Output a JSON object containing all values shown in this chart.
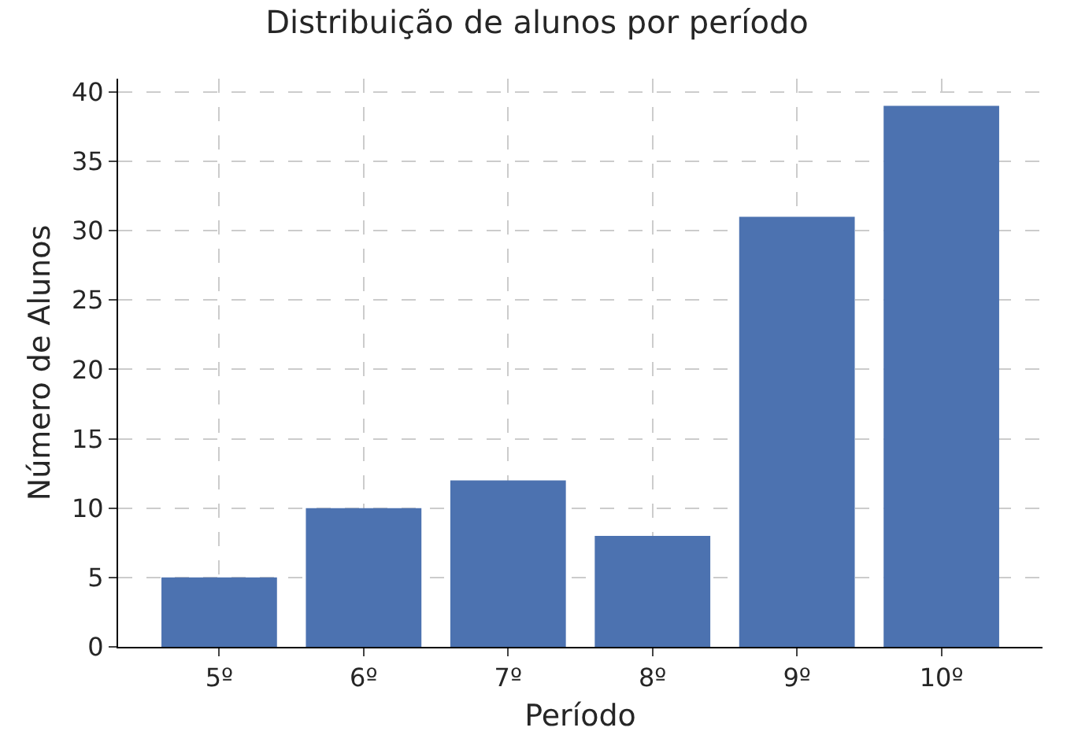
{
  "chart_data": {
    "type": "bar",
    "title": "Distribuição de alunos por período",
    "xlabel": "Período",
    "ylabel": "Número de Alunos",
    "categories": [
      "5º",
      "6º",
      "7º",
      "8º",
      "9º",
      "10º"
    ],
    "values": [
      5,
      10,
      12,
      8,
      31,
      39
    ],
    "color": "#4c72b0",
    "ylim": [
      0,
      40.95
    ],
    "yticks": [
      0,
      5,
      10,
      15,
      20,
      25,
      30,
      35,
      40
    ],
    "grid": true,
    "line_style": "dashed"
  }
}
